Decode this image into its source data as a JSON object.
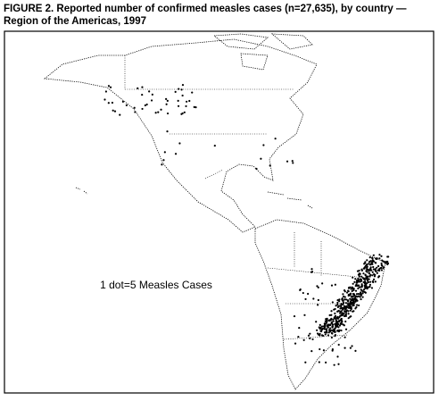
{
  "header": {
    "title_lines": [
      "FIGURE 2. Reported number of confirmed measles cases (n=27,635), by country —",
      "Region of the Americas, 1997"
    ]
  },
  "map": {
    "legend": "1 dot=5 Measles Cases"
  }
}
